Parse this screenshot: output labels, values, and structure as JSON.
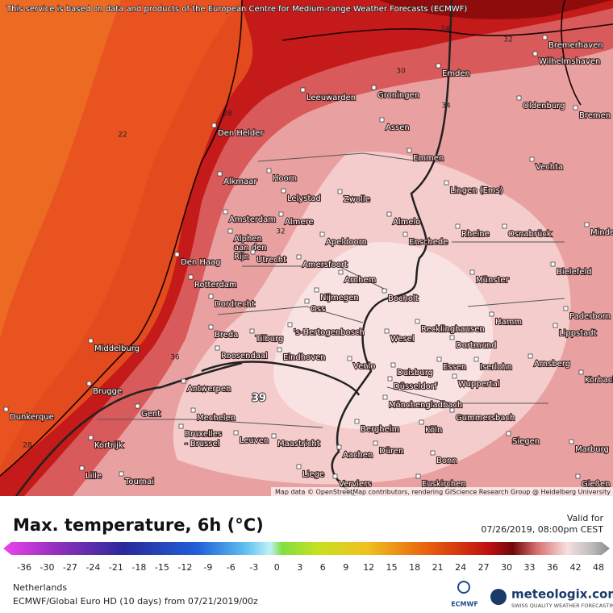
{
  "header": {
    "attribution": "This service is based on data and products of the European Centre for Medium-range Weather Forecasts (ECMWF)"
  },
  "map": {
    "cities": [
      "Bremerhaven",
      "Wilhelmshaven",
      "Emden",
      "Leeuwarden",
      "Groningen",
      "Oldenburg",
      "Bremen",
      "Den Helder",
      "Assen",
      "Emmen",
      "Vechta",
      "Alkmaar",
      "Hoorn",
      "Lelystad",
      "Zwolle",
      "Lingen (Ems)",
      "Amsterdam",
      "Almere",
      "Almelo",
      "Rheine",
      "Osnabrück",
      "Minden",
      "Alphen aan den Rijn",
      "Apeldoorn",
      "Enschede",
      "Den Haag",
      "Utrecht",
      "Amersfoort",
      "Bielefeld",
      "Rotterdam",
      "Arnhem",
      "Münster",
      "Dordrecht",
      "Nijmegen",
      "Bocholt",
      "Oss",
      "Hamm",
      "Paderborn",
      "Breda",
      "Tilburg",
      "'s-Hertogenbosch",
      "Recklinghausen",
      "Lippstadt",
      "Middelburg",
      "Roosendaal",
      "Eindhoven",
      "Wesel",
      "Dortmund",
      "Arnsberg",
      "Venlo",
      "Essen",
      "Iserlohn",
      "Duisburg",
      "Korbach",
      "Wuppertal",
      "Antwerpen",
      "Brugge",
      "Düsseldorf",
      "Mönchengladbach",
      "Dunkerque",
      "Gent",
      "Mechelen",
      "Gummersbach",
      "Bruxelles - Brussel",
      "Leuven",
      "Maastricht",
      "Bergheim",
      "Köln",
      "Siegen",
      "Kortrijk",
      "Düren",
      "Aachen",
      "Marburg",
      "Bonn",
      "Lille",
      "Liege",
      "Tournai",
      "Verviers",
      "Euskirchen",
      "Gießen"
    ],
    "contour_labels": [
      "22",
      "28",
      "24",
      "32",
      "30",
      "34",
      "32",
      "36",
      "39",
      "28"
    ],
    "credit": "Map data © OpenStreetMap contributors, rendering GIScience Research Group @ Heidelberg University"
  },
  "legend": {
    "title": "Max. temperature, 6h (°C)",
    "valid_label": "Valid for",
    "valid_time": "07/26/2019, 08:00pm CEST",
    "ticks": [
      -36,
      -30,
      -27,
      -24,
      -21,
      -18,
      -15,
      -12,
      -9,
      -6,
      -3,
      0,
      3,
      6,
      9,
      12,
      15,
      18,
      21,
      24,
      27,
      30,
      33,
      36,
      42,
      48
    ]
  },
  "footer": {
    "region": "Netherlands",
    "model": "ECMWF/Global Euro HD (10 days) from 07/21/2019/00z",
    "ecmwf": "ECMWF",
    "brand": "meteologix.com",
    "tagline": "SWISS QUALITY WEATHER FORECASTING"
  }
}
